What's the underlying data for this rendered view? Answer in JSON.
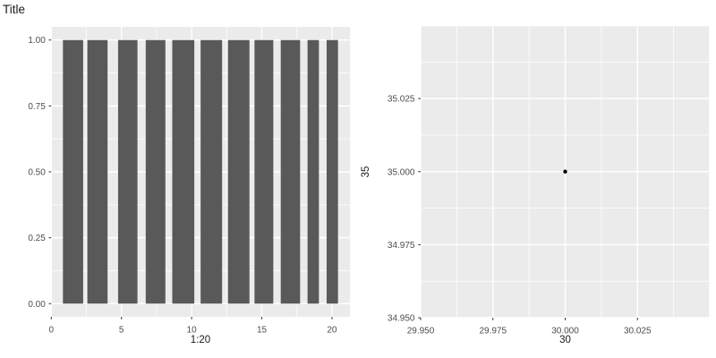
{
  "chart_data": [
    {
      "type": "bar",
      "title": "Title",
      "xlabel": "1:20",
      "ylabel": "",
      "xlim": [
        0,
        21.3
      ],
      "ylim": [
        -0.05,
        1.05
      ],
      "grid": true,
      "legend": "none",
      "x_ticks": [
        {
          "v": 0,
          "label": "0"
        },
        {
          "v": 5,
          "label": "5"
        },
        {
          "v": 10,
          "label": "10"
        },
        {
          "v": 15,
          "label": "15"
        },
        {
          "v": 20,
          "label": "20"
        }
      ],
      "y_ticks": [
        {
          "v": 0.0,
          "label": "0.00"
        },
        {
          "v": 0.25,
          "label": "0.25"
        },
        {
          "v": 0.5,
          "label": "0.50"
        },
        {
          "v": 0.75,
          "label": "0.75"
        },
        {
          "v": 1.0,
          "label": "1.00"
        }
      ],
      "x_minor": [
        2.5,
        7.5,
        12.5,
        17.5
      ],
      "y_minor": [
        0.125,
        0.375,
        0.625,
        0.875
      ],
      "x_major_extra": [],
      "y_major_extra": [],
      "bars": [
        {
          "x0": 0.83,
          "x1": 2.27,
          "y": 1.0
        },
        {
          "x0": 2.57,
          "x1": 4.01,
          "y": 1.0
        },
        {
          "x0": 4.76,
          "x1": 6.14,
          "y": 1.0
        },
        {
          "x0": 6.73,
          "x1": 8.13,
          "y": 1.0
        },
        {
          "x0": 8.62,
          "x1": 10.19,
          "y": 1.0
        },
        {
          "x0": 10.64,
          "x1": 12.17,
          "y": 1.0
        },
        {
          "x0": 12.59,
          "x1": 14.12,
          "y": 1.0
        },
        {
          "x0": 14.48,
          "x1": 15.82,
          "y": 1.0
        },
        {
          "x0": 16.35,
          "x1": 17.73,
          "y": 1.0
        },
        {
          "x0": 18.26,
          "x1": 19.07,
          "y": 1.0
        },
        {
          "x0": 19.62,
          "x1": 20.43,
          "y": 1.0
        }
      ]
    },
    {
      "type": "scatter",
      "title": "",
      "xlabel": "30",
      "ylabel": "35",
      "xlim": [
        29.95,
        30.05
      ],
      "ylim": [
        34.95,
        35.05
      ],
      "grid": true,
      "legend": "none",
      "x_ticks": [
        {
          "v": 29.95,
          "label": "29.950"
        },
        {
          "v": 29.975,
          "label": "29.975"
        },
        {
          "v": 30.0,
          "label": "30.000"
        },
        {
          "v": 30.025,
          "label": "30.025"
        }
      ],
      "y_ticks": [
        {
          "v": 34.95,
          "label": "34.950"
        },
        {
          "v": 34.975,
          "label": "34.975"
        },
        {
          "v": 35.0,
          "label": "35.000"
        },
        {
          "v": 35.025,
          "label": "35.025"
        }
      ],
      "x_minor": [
        29.9625,
        29.9875,
        30.0125,
        30.0375
      ],
      "y_minor": [
        34.9625,
        34.9875,
        35.0125,
        35.0375
      ],
      "x_major_extra": [
        30.05
      ],
      "y_major_extra": [
        35.05
      ],
      "points": [
        {
          "x": 30.0,
          "y": 35.0
        }
      ]
    }
  ],
  "colors": {
    "background": "#FFFFFF",
    "panel_bg": "#EBEBEB",
    "grid_major": "#FFFFFF",
    "grid_minor": "#FFFFFF",
    "bar_fill": "#595959",
    "point_fill": "#000000",
    "tick_mark": "#333333",
    "tick_label": "#4D4D4D",
    "title_text": "#1A1A1A"
  }
}
